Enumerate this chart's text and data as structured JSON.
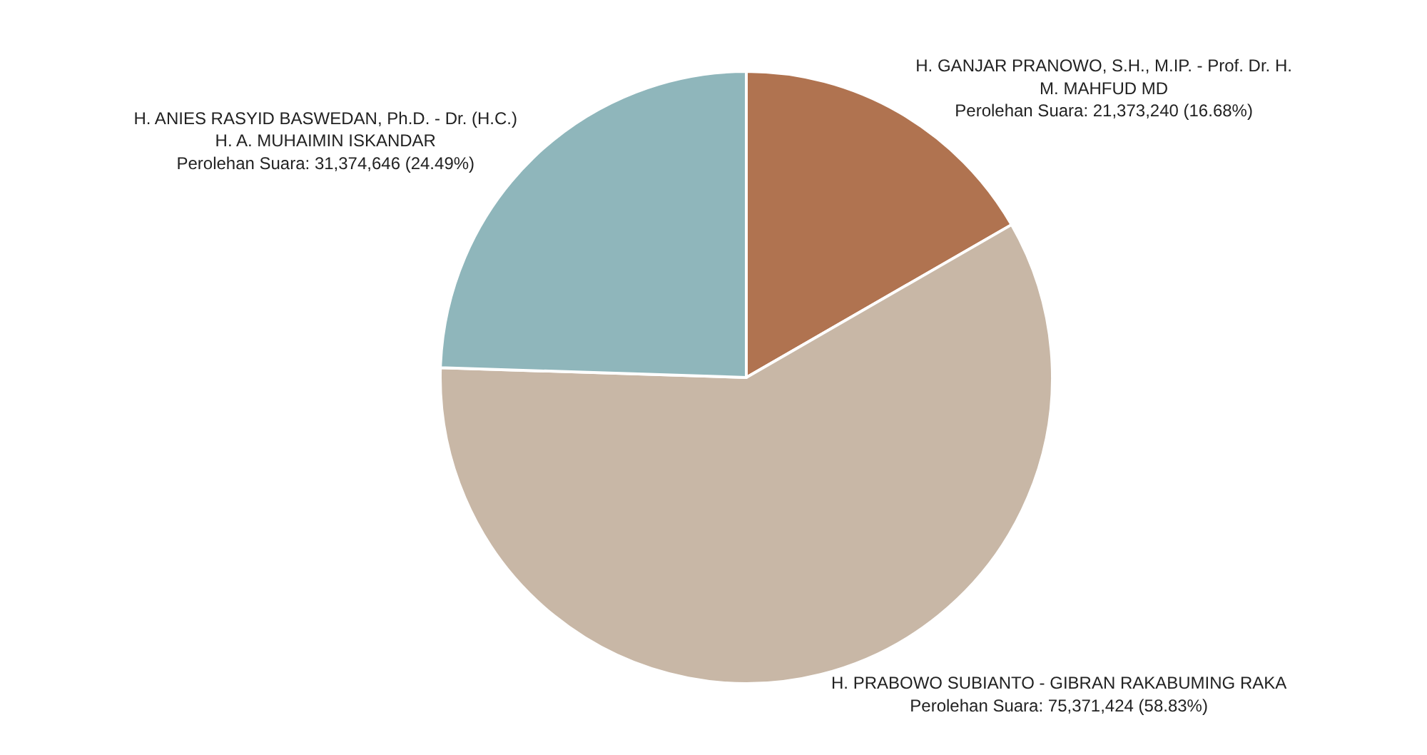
{
  "chart_data": {
    "type": "pie",
    "categories": [
      "H. GANJAR PRANOWO, S.H., M.IP. - Prof. Dr. H. M. MAHFUD MD",
      "H. PRABOWO SUBIANTO - GIBRAN RAKABUMING RAKA",
      "H. ANIES RASYID BASWEDAN, Ph.D. - Dr. (H.C.) H. A. MUHAIMIN ISKANDAR"
    ],
    "values": [
      21373240,
      75371424,
      31374646
    ],
    "value_labels": [
      "Perolehan Suara: 21,373,240 (16.68%)",
      "Perolehan Suara: 75,371,424 (58.83%)",
      "Perolehan Suara: 31,374,646 (24.49%)"
    ],
    "colors": [
      "#b07350",
      "#c8b7a6",
      "#8fb6bb"
    ],
    "legend": false
  }
}
